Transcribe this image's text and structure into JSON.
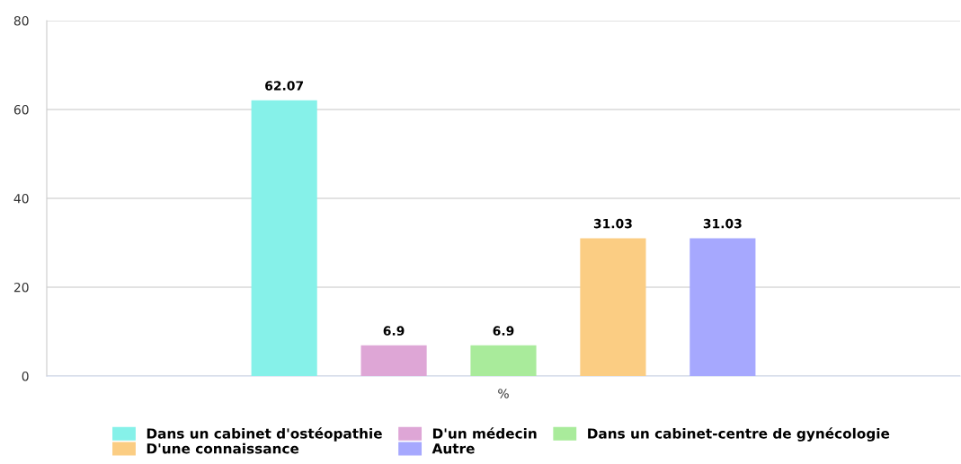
{
  "chart_data": {
    "type": "bar",
    "categories": [
      "%"
    ],
    "series": [
      {
        "name": "Dans un cabinet d'ostéopathie",
        "color": "#86f1e9",
        "values": [
          62.07
        ]
      },
      {
        "name": "D'un médecin",
        "color": "#dea6d6",
        "values": [
          6.9
        ]
      },
      {
        "name": "Dans un cabinet-centre de gynécologie",
        "color": "#a9eb9b",
        "values": [
          6.9
        ]
      },
      {
        "name": "D'une connaissance",
        "color": "#fbcd83",
        "values": [
          31.03
        ]
      },
      {
        "name": "Autre",
        "color": "#a6a8fe",
        "values": [
          31.03
        ]
      }
    ],
    "ylim": [
      0,
      80
    ],
    "yticks": [
      0,
      20,
      40,
      60,
      80
    ],
    "grid": "y",
    "legend": "bottom",
    "data_labels": true
  }
}
